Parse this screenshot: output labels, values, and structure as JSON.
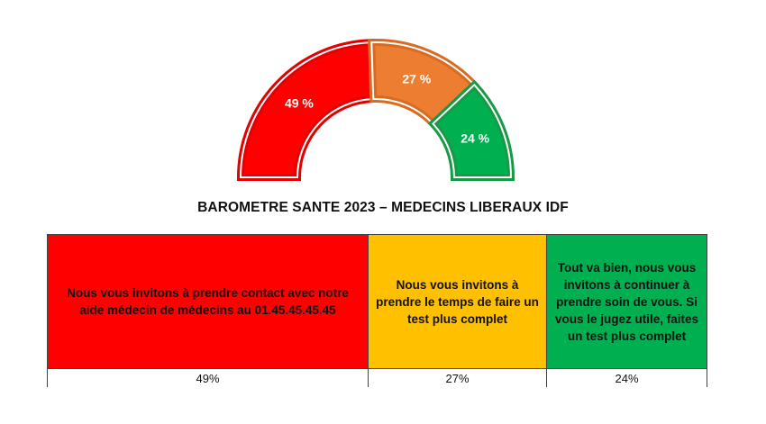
{
  "chart_data": {
    "type": "pie",
    "variant": "half-donut gauge",
    "title": "BAROMETRE SANTE 2023 – MEDECINS LIBERAUX IDF",
    "slices": [
      {
        "label": "49 %",
        "value": 49,
        "color": "#ff0000",
        "shade": "#e20000"
      },
      {
        "label": "27 %",
        "value": 27,
        "color": "#ed7d31",
        "shade": "#d96a22"
      },
      {
        "label": "24 %",
        "value": 24,
        "color": "#00b050",
        "shade": "#169a45"
      }
    ]
  },
  "legend_table": {
    "rows": [
      {
        "message": "Nous vous invitons à prendre contact avec notre aide médecin de médecins au 01.45.45.45.45",
        "percent": "49%",
        "color": "#ff0000"
      },
      {
        "message": "Nous vous invitons à prendre le temps de faire un test plus complet",
        "percent": "27%",
        "color": "#ffc000"
      },
      {
        "message": "Tout va bien, nous vous invitons à continuer à prendre soin de vous. Si vous le jugez utile, faites un test plus complet",
        "percent": "24%",
        "color": "#00b050"
      }
    ]
  }
}
